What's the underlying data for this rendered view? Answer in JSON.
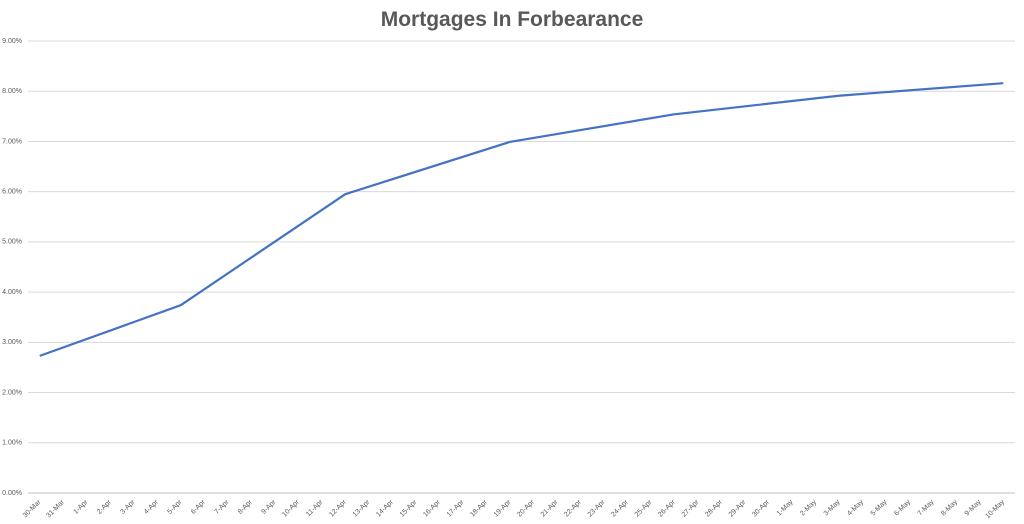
{
  "chart_data": {
    "type": "line",
    "title": "Mortgages In Forbearance",
    "categories": [
      "30-Mar",
      "31-Mar",
      "1-Apr",
      "2-Apr",
      "3-Apr",
      "4-Apr",
      "5-Apr",
      "6-Apr",
      "7-Apr",
      "8-Apr",
      "9-Apr",
      "10-Apr",
      "11-Apr",
      "12-Apr",
      "13-Apr",
      "14-Apr",
      "15-Apr",
      "16-Apr",
      "17-Apr",
      "18-Apr",
      "19-Apr",
      "20-Apr",
      "21-Apr",
      "22-Apr",
      "23-Apr",
      "24-Apr",
      "25-Apr",
      "26-Apr",
      "27-Apr",
      "28-Apr",
      "29-Apr",
      "30-Apr",
      "1-May",
      "2-May",
      "3-May",
      "4-May",
      "5-May",
      "6-May",
      "7-May",
      "8-May",
      "9-May",
      "10-May"
    ],
    "series": [
      {
        "color": "#4472c4",
        "x": [
          "30-Mar",
          "5-Apr",
          "12-Apr",
          "19-Apr",
          "26-Apr",
          "3-May",
          "10-May"
        ],
        "values": [
          2.73,
          3.74,
          5.95,
          6.99,
          7.54,
          7.91,
          8.16
        ]
      }
    ],
    "ylim": [
      0,
      9
    ],
    "yticks": [
      {
        "value": 0,
        "label": "0.00%"
      },
      {
        "value": 1,
        "label": "1.00%"
      },
      {
        "value": 2,
        "label": "2.00%"
      },
      {
        "value": 3,
        "label": "3.00%"
      },
      {
        "value": 4,
        "label": "4.00%"
      },
      {
        "value": 5,
        "label": "5.00%"
      },
      {
        "value": 6,
        "label": "6.00%"
      },
      {
        "value": 7,
        "label": "7.00%"
      },
      {
        "value": 8,
        "label": "8.00%"
      },
      {
        "value": 9,
        "label": "9.00%"
      }
    ],
    "grid": true
  }
}
